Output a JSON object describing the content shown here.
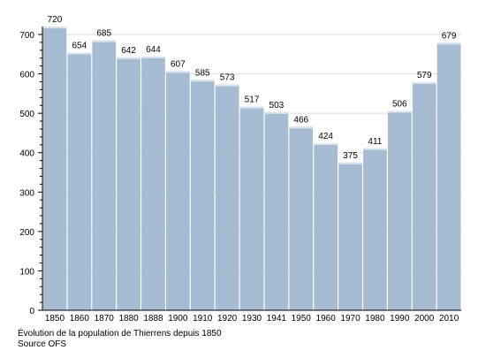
{
  "chart_data": {
    "type": "bar",
    "categories": [
      "1850",
      "1860",
      "1870",
      "1880",
      "1888",
      "1900",
      "1910",
      "1920",
      "1930",
      "1941",
      "1950",
      "1960",
      "1970",
      "1980",
      "1990",
      "2000",
      "2010"
    ],
    "values": [
      720,
      654,
      685,
      642,
      644,
      607,
      585,
      573,
      517,
      503,
      466,
      424,
      375,
      411,
      506,
      579,
      679
    ],
    "ylim": [
      0,
      700
    ],
    "yticks": [
      0,
      100,
      200,
      300,
      400,
      500,
      600,
      700
    ],
    "grid": true,
    "bar_color": "#a6bcd2",
    "title": "",
    "xlabel": "",
    "ylabel": ""
  },
  "caption": {
    "line1": "Évolution de la population de Thierrens depuis 1850",
    "line2": "Source OFS"
  }
}
